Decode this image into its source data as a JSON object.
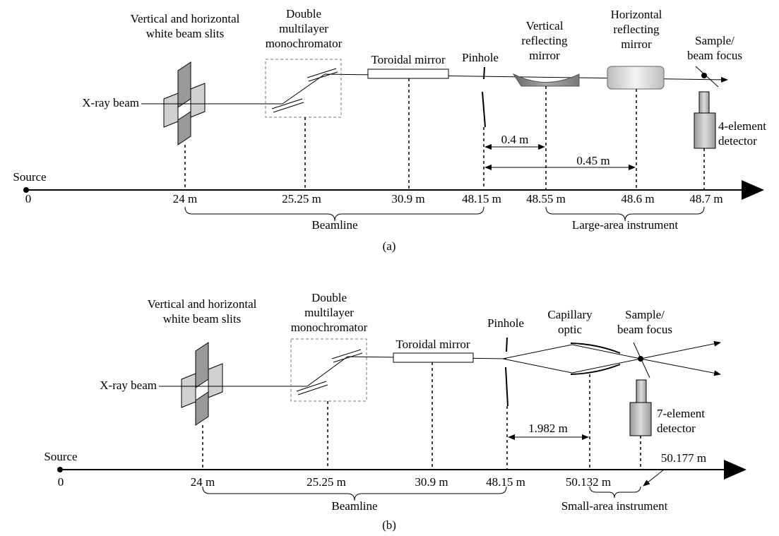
{
  "panel_a": {
    "slits_label": [
      "Vertical and horizontal",
      "white beam slits"
    ],
    "mono_label": [
      "Double",
      "multilayer",
      "monochromator"
    ],
    "toroidal_label": "Toroidal mirror",
    "pinhole_label": "Pinhole",
    "vmirror_label": [
      "Vertical",
      "reflecting",
      "mirror"
    ],
    "hmirror_label": [
      "Horizontal",
      "reflecting",
      "mirror"
    ],
    "sample_label": [
      "Sample/",
      "beam focus"
    ],
    "beam_label": "X-ray beam",
    "detector_label": [
      "4-element",
      "detector"
    ],
    "source_label": "Source",
    "origin_label": "0",
    "positions": [
      "24 m",
      "25.25 m",
      "30.9 m",
      "48.15 m",
      "48.55 m",
      "48.6 m",
      "48.7 m"
    ],
    "distances": [
      "0.4 m",
      "0.45 m"
    ],
    "groups": [
      "Beamline",
      "Large-area instrument"
    ],
    "caption": "(a)"
  },
  "panel_b": {
    "slits_label": [
      "Vertical and horizontal",
      "white beam slits"
    ],
    "mono_label": [
      "Double",
      "multilayer",
      "monochromator"
    ],
    "toroidal_label": "Toroidal mirror",
    "pinhole_label": "Pinhole",
    "capillary_label": [
      "Capillary",
      "optic"
    ],
    "sample_label": [
      "Sample/",
      "beam focus"
    ],
    "beam_label": "X-ray beam",
    "detector_label": [
      "7-element",
      "detector"
    ],
    "source_label": "Source",
    "origin_label": "0",
    "positions": [
      "24 m",
      "25.25 m",
      "30.9 m",
      "48.15 m",
      "50.132 m",
      "50.177 m"
    ],
    "distances": [
      "1.982 m"
    ],
    "groups": [
      "Beamline",
      "Small-area instrument"
    ],
    "caption": "(b)"
  }
}
